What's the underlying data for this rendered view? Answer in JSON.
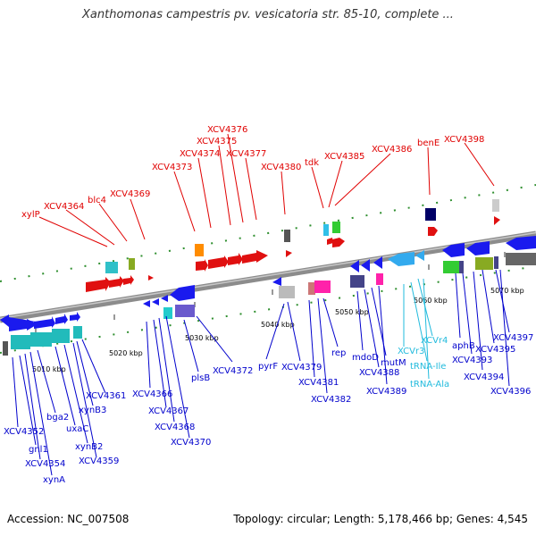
{
  "header": {
    "title": "Xanthomonas campestris pv. vesicatoria str. 85-10, complete ..."
  },
  "footer": {
    "accession": "Accession: NC_007508",
    "summary": "Topology: circular; Length: 5,178,466 bp; Genes: 4,545"
  },
  "colors": {
    "top_label": "#e00000",
    "bottom_label": "#0000cc",
    "rna_label": "#22bbdd",
    "backbone": "#8c8c8c"
  },
  "axis": {
    "ticks": [
      "5010 kbp",
      "5020 kbp",
      "5030 kbp",
      "5040 kbp",
      "5050 kbp",
      "5060 kbp",
      "5070 kbp"
    ]
  },
  "top_labels": [
    "xylP",
    "XCV4364",
    "blc4",
    "XCV4369",
    "XCV4373",
    "XCV4374",
    "XCV4375",
    "XCV4376",
    "XCV4377",
    "XCV4380",
    "tdk",
    "XCV4385",
    "XCV4386",
    "benE",
    "XCV4398"
  ],
  "bottom_labels": [
    "XCV4352",
    "gnl1",
    "XCV4354",
    "xynA",
    "bga2",
    "uxaC",
    "xynB2",
    "XCV4359",
    "xynB3",
    "XCV4361",
    "XCV4366",
    "XCV4367",
    "XCV4368",
    "XCV4370",
    "plsB",
    "XCV4372",
    "pyrF",
    "XCV4379",
    "XCV4381",
    "XCV4382",
    "rep",
    "mdoD",
    "XCV4388",
    "mutM",
    "XCV4389",
    "XCVr3",
    "XCVr4",
    "tRNA-Ile",
    "tRNA-Ala",
    "aphB",
    "XCV4393",
    "XCV4394",
    "XCV4395",
    "XCV4397",
    "XCV4396"
  ]
}
